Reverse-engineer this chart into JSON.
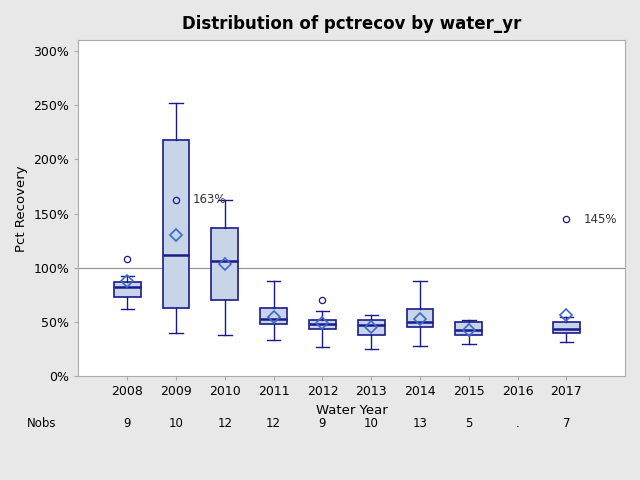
{
  "title": "Distribution of pctrecov by water_yr",
  "xlabel": "Water Year",
  "ylabel": "Pct Recovery",
  "years": [
    2008,
    2009,
    2010,
    2011,
    2012,
    2013,
    2014,
    2015,
    2016,
    2017
  ],
  "nobs": [
    "9",
    "10",
    "12",
    "12",
    "9",
    "10",
    "13",
    "5",
    ".",
    "7"
  ],
  "box_data": {
    "2008": {
      "q1": 73,
      "median": 82,
      "q3": 87,
      "whislo": 62,
      "whishi": 93,
      "mean": 88,
      "outliers": [
        108
      ]
    },
    "2009": {
      "q1": 63,
      "median": 112,
      "q3": 218,
      "whislo": 40,
      "whishi": 252,
      "mean": 130,
      "outliers": [
        163
      ]
    },
    "2010": {
      "q1": 70,
      "median": 106,
      "q3": 137,
      "whislo": 38,
      "whishi": 163,
      "mean": 104,
      "outliers": []
    },
    "2011": {
      "q1": 48,
      "median": 53,
      "q3": 63,
      "whislo": 34,
      "whishi": 88,
      "mean": 55,
      "outliers": []
    },
    "2012": {
      "q1": 44,
      "median": 48,
      "q3": 52,
      "whislo": 27,
      "whishi": 60,
      "mean": 49,
      "outliers": [
        70
      ]
    },
    "2013": {
      "q1": 38,
      "median": 47,
      "q3": 52,
      "whislo": 25,
      "whishi": 57,
      "mean": 46,
      "outliers": []
    },
    "2014": {
      "q1": 46,
      "median": 50,
      "q3": 62,
      "whislo": 28,
      "whishi": 88,
      "mean": 53,
      "outliers": []
    },
    "2015": {
      "q1": 38,
      "median": 43,
      "q3": 50,
      "whislo": 30,
      "whishi": 52,
      "mean": 43,
      "outliers": []
    },
    "2016": null,
    "2017": {
      "q1": 40,
      "median": 44,
      "q3": 50,
      "whislo": 32,
      "whishi": 55,
      "mean": 57,
      "outliers": []
    }
  },
  "outlier_labels": {
    "2009": {
      "value": 163,
      "label": "163%",
      "xoffset": 0.35
    },
    "2017": {
      "value": 145,
      "label": "145%",
      "xoffset": 0.35
    }
  },
  "extra_outlier_2017": 145,
  "hline_y": 100,
  "ylim": [
    0,
    310
  ],
  "yticks": [
    0,
    50,
    100,
    150,
    200,
    250,
    300
  ],
  "xlim": [
    2007.0,
    2018.2
  ],
  "box_facecolor": "#c8d4e8",
  "box_edgecolor": "#1a1a8c",
  "median_color": "#1a1a8c",
  "whisker_color": "#1a1a8c",
  "mean_marker_color": "#3a6bc8",
  "outlier_color": "#1a1a8c",
  "hline_color": "#999999",
  "plot_bg_color": "#ffffff",
  "figure_bg_color": "#e8e8e8",
  "spine_color": "#aaaaaa",
  "title_fontsize": 12,
  "label_fontsize": 9.5,
  "tick_fontsize": 9,
  "nobs_fontsize": 8.5,
  "box_width": 0.55
}
